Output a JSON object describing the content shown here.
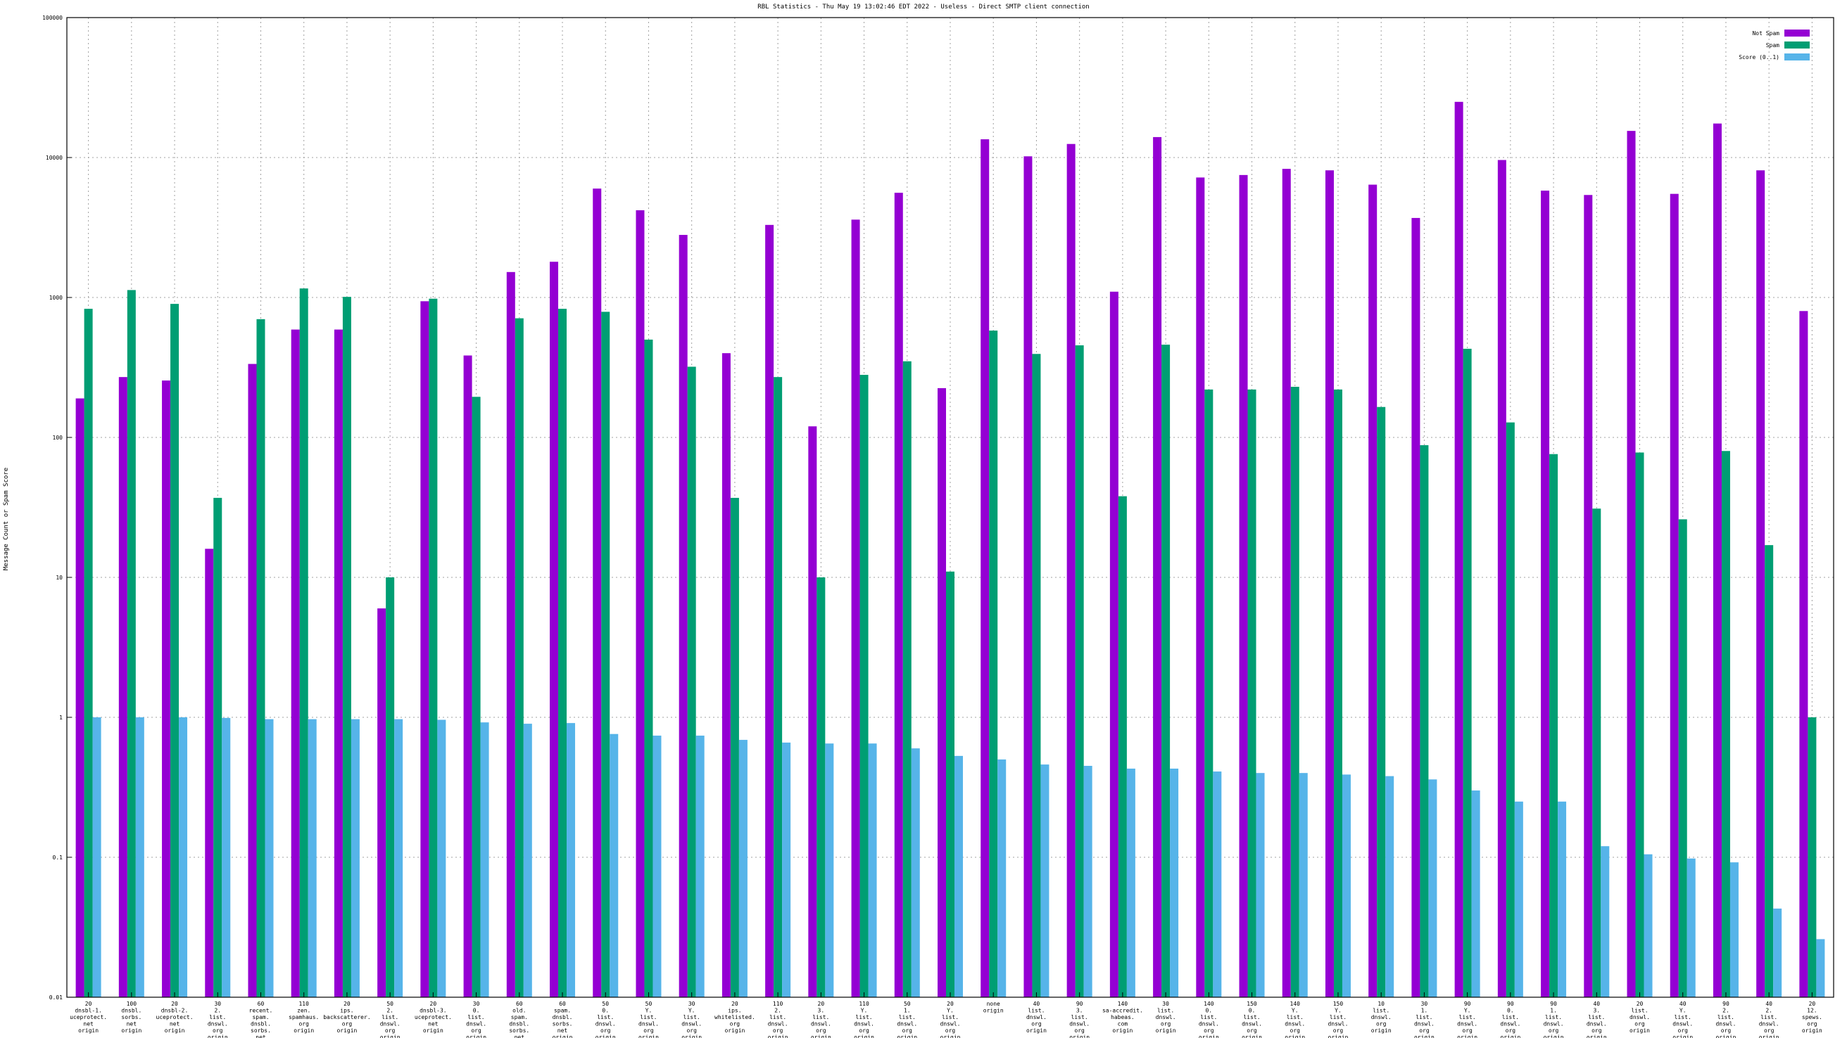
{
  "chart_data": {
    "type": "bar",
    "title": "RBL Statistics - Thu May 19 13:02:46 EDT 2022 - Useless - Direct SMTP client connection",
    "ylabel": "Message Count or Spam Score",
    "xlabel": "",
    "yscale": "log",
    "ylim": [
      0.01,
      100000
    ],
    "yticks": [
      "0.01",
      "0.1",
      "1",
      "10",
      "100",
      "1000",
      "10000",
      "100000"
    ],
    "grid": true,
    "legend_position": "top-right",
    "categories": [
      [
        "20",
        "dnsbl-1.",
        "uceprotect.",
        "net",
        "origin"
      ],
      [
        "100",
        "dnsbl.",
        "sorbs.",
        "net",
        "origin"
      ],
      [
        "20",
        "dnsbl-2.",
        "uceprotect.",
        "net",
        "origin"
      ],
      [
        "30",
        "2.",
        "list.",
        "dnswl.",
        "org",
        "origin"
      ],
      [
        "60",
        "recent.",
        "spam.",
        "dnsbl.",
        "sorbs.",
        "net",
        "origin"
      ],
      [
        "110",
        "zen.",
        "spamhaus.",
        "org",
        "origin"
      ],
      [
        "20",
        "ips.",
        "backscatterer.",
        "org",
        "origin"
      ],
      [
        "50",
        "2.",
        "list.",
        "dnswl.",
        "org",
        "origin"
      ],
      [
        "20",
        "dnsbl-3.",
        "uceprotect.",
        "net",
        "origin"
      ],
      [
        "30",
        "0.",
        "list.",
        "dnswl.",
        "org",
        "origin"
      ],
      [
        "60",
        "old.",
        "spam.",
        "dnsbl.",
        "sorbs.",
        "net",
        "origin"
      ],
      [
        "60",
        "spam.",
        "dnsbl.",
        "sorbs.",
        "net",
        "origin"
      ],
      [
        "50",
        "0.",
        "list.",
        "dnswl.",
        "org",
        "origin"
      ],
      [
        "50",
        "Y.",
        "list.",
        "dnswl.",
        "org",
        "origin"
      ],
      [
        "30",
        "Y.",
        "list.",
        "dnswl.",
        "org",
        "origin"
      ],
      [
        "20",
        "ips.",
        "whitelisted.",
        "org",
        "origin"
      ],
      [
        "110",
        "2.",
        "list.",
        "dnswl.",
        "org",
        "origin"
      ],
      [
        "20",
        "3.",
        "list.",
        "dnswl.",
        "org",
        "origin"
      ],
      [
        "110",
        "Y.",
        "list.",
        "dnswl.",
        "org",
        "origin"
      ],
      [
        "50",
        "1.",
        "list.",
        "dnswl.",
        "org",
        "origin"
      ],
      [
        "20",
        "Y.",
        "list.",
        "dnswl.",
        "org",
        "origin"
      ],
      [
        "none",
        "origin"
      ],
      [
        "40",
        "list.",
        "dnswl.",
        "org",
        "origin"
      ],
      [
        "90",
        "3.",
        "list.",
        "dnswl.",
        "org",
        "origin"
      ],
      [
        "140",
        "sa-accredit.",
        "habeas.",
        "com",
        "origin"
      ],
      [
        "30",
        "list.",
        "dnswl.",
        "org",
        "origin"
      ],
      [
        "140",
        "0.",
        "list.",
        "dnswl.",
        "org",
        "origin"
      ],
      [
        "150",
        "0.",
        "list.",
        "dnswl.",
        "org",
        "origin"
      ],
      [
        "140",
        "Y.",
        "list.",
        "dnswl.",
        "org",
        "origin"
      ],
      [
        "150",
        "Y.",
        "list.",
        "dnswl.",
        "org",
        "origin"
      ],
      [
        "10",
        "list.",
        "dnswl.",
        "org",
        "origin"
      ],
      [
        "30",
        "1.",
        "list.",
        "dnswl.",
        "org",
        "origin"
      ],
      [
        "90",
        "Y.",
        "list.",
        "dnswl.",
        "org",
        "origin"
      ],
      [
        "90",
        "0.",
        "list.",
        "dnswl.",
        "org",
        "origin"
      ],
      [
        "90",
        "1.",
        "list.",
        "dnswl.",
        "org",
        "origin"
      ],
      [
        "40",
        "3.",
        "list.",
        "dnswl.",
        "org",
        "origin"
      ],
      [
        "20",
        "list.",
        "dnswl.",
        "org",
        "origin"
      ],
      [
        "40",
        "Y.",
        "list.",
        "dnswl.",
        "org",
        "origin"
      ],
      [
        "90",
        "2.",
        "list.",
        "dnswl.",
        "org",
        "origin"
      ],
      [
        "40",
        "2.",
        "list.",
        "dnswl.",
        "org",
        "origin"
      ],
      [
        "20",
        "12.",
        "spews.",
        "org",
        "origin"
      ]
    ],
    "series": [
      {
        "name": "Not Spam",
        "color": "#9400d3",
        "values": [
          190,
          270,
          255,
          16,
          335,
          590,
          590,
          6,
          940,
          385,
          1520,
          1800,
          6000,
          4200,
          2800,
          400,
          3300,
          120,
          3600,
          5600,
          225,
          13500,
          10200,
          12500,
          1100,
          14000,
          7200,
          7500,
          8300,
          8100,
          6400,
          3700,
          25000,
          9600,
          5800,
          5400,
          15500,
          5500,
          17500,
          8100,
          800
        ]
      },
      {
        "name": "Spam",
        "color": "#009e73",
        "values": [
          830,
          1130,
          900,
          37,
          700,
          1160,
          1010,
          10,
          980,
          195,
          710,
          830,
          790,
          500,
          320,
          37,
          270,
          10,
          280,
          350,
          11,
          580,
          395,
          455,
          38,
          460,
          220,
          220,
          230,
          220,
          165,
          88,
          430,
          128,
          76,
          31,
          78,
          26,
          80,
          17,
          1
        ]
      },
      {
        "name": "Score (0..1)",
        "color": "#56b4e9",
        "values": [
          1.0,
          1.0,
          1.0,
          0.99,
          0.97,
          0.97,
          0.97,
          0.97,
          0.96,
          0.92,
          0.9,
          0.91,
          0.76,
          0.74,
          0.74,
          0.69,
          0.66,
          0.65,
          0.65,
          0.6,
          0.53,
          0.5,
          0.46,
          0.45,
          0.43,
          0.43,
          0.41,
          0.4,
          0.4,
          0.39,
          0.38,
          0.36,
          0.3,
          0.25,
          0.25,
          0.12,
          0.105,
          0.098,
          0.092,
          0.043,
          0.026
        ]
      }
    ]
  }
}
